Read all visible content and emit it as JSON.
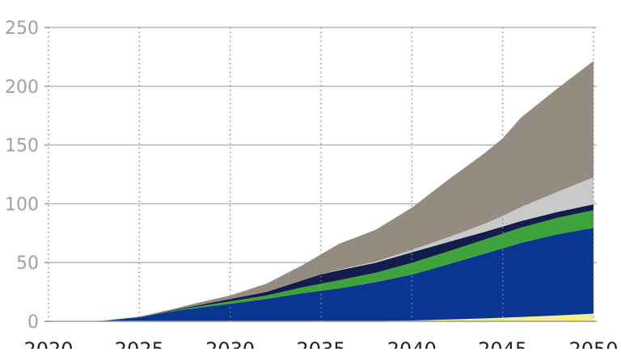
{
  "chart_data": {
    "type": "area",
    "stacked": true,
    "title": "",
    "xlabel": "",
    "ylabel": "",
    "x": [
      2020,
      2022,
      2023,
      2025,
      2027,
      2028,
      2030,
      2032,
      2034,
      2035,
      2036,
      2038,
      2040,
      2042,
      2044,
      2045,
      2046,
      2048,
      2050
    ],
    "x_ticks": [
      "2020",
      "2025",
      "2030",
      "2035",
      "2040",
      "2045",
      "2050"
    ],
    "y_ticks": [
      "0",
      "50",
      "100",
      "150",
      "200",
      "250"
    ],
    "xlim": [
      2020,
      2050
    ],
    "ylim": [
      0,
      250
    ],
    "grid": {
      "horizontal": true,
      "horizontal_style": "solid",
      "vertical": true,
      "vertical_style": "dotted"
    },
    "legend": "none",
    "series": [
      {
        "color": "#f5ee8c",
        "values": [
          0,
          0,
          0,
          0,
          0,
          0,
          0,
          0,
          0,
          0,
          0,
          0.3,
          0.7,
          1.5,
          2.5,
          3.1,
          3.7,
          5,
          6.5
        ]
      },
      {
        "color": "#0a3591",
        "values": [
          0,
          0,
          0.5,
          3.5,
          9,
          11,
          15,
          19,
          24,
          26,
          28,
          33,
          39,
          47,
          55,
          59,
          63,
          69,
          73
        ]
      },
      {
        "color": "#3da33a",
        "values": [
          0,
          0,
          0,
          0,
          0.5,
          1,
          2,
          3,
          5,
          6,
          7,
          8,
          10,
          11,
          12,
          12.5,
          13,
          14,
          15
        ]
      },
      {
        "color": "#121d4d",
        "values": [
          0,
          0,
          0,
          0,
          0.5,
          1,
          2,
          3,
          6,
          8,
          8.5,
          8.5,
          9,
          8,
          6.5,
          6,
          5.5,
          5,
          5
        ]
      },
      {
        "color": "#c9c9c9",
        "values": [
          0,
          0,
          0,
          0,
          0,
          0,
          0,
          0,
          0,
          0,
          0.5,
          1,
          2,
          4,
          7,
          9,
          12,
          17,
          23
        ]
      },
      {
        "color": "#968b80",
        "values": [
          0,
          0,
          0,
          0.5,
          1,
          2,
          3,
          7,
          13,
          17,
          22,
          27,
          36,
          49,
          60,
          66,
          76,
          88,
          99
        ]
      }
    ]
  }
}
